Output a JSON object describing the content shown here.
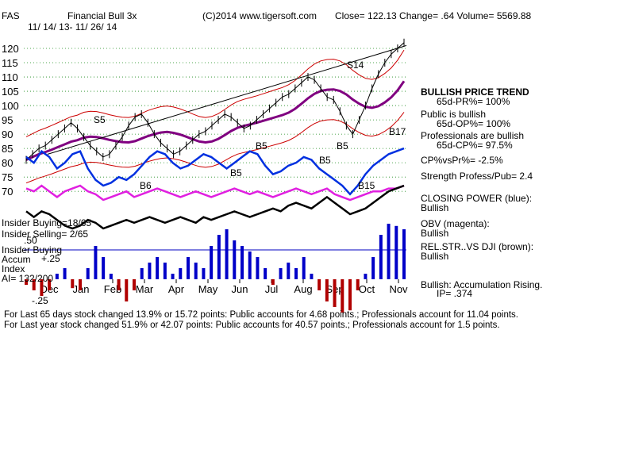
{
  "header": {
    "symbol": "FAS",
    "name": "Financial Bull 3x",
    "date_range": "11/ 14/ 13- 11/ 26/ 14",
    "copyright": "(C)2014 www.tigersoft.com",
    "stats": "Close=  122.13  Change= .64 Volume= 5569.88"
  },
  "chart_data": {
    "type": "line",
    "title": "Financial Bull 3x",
    "y_ticks": [
      120,
      115,
      110,
      105,
      100,
      95,
      90,
      85,
      80,
      75,
      70
    ],
    "ylim": [
      67,
      122.5
    ],
    "x_ticks": [
      "Dec",
      "Jan",
      "Feb",
      "Mar",
      "Apr",
      "May",
      "Jun",
      "Jul",
      "Aug",
      "Sep",
      "Oct",
      "Nov"
    ],
    "price_series": {
      "name": "Price",
      "values": [
        81,
        83,
        85,
        86,
        88,
        90,
        92,
        94,
        92,
        89,
        86,
        84,
        82,
        83,
        86,
        89,
        93,
        96,
        97,
        94,
        90,
        87,
        85,
        83,
        84,
        86,
        88,
        90,
        91,
        93,
        95,
        97,
        96,
        94,
        92,
        93,
        95,
        97,
        99,
        101,
        103,
        104,
        106,
        108,
        110,
        109,
        106,
        103,
        102,
        98,
        93,
        90,
        95,
        100,
        106,
        111,
        115,
        118,
        120,
        122
      ]
    },
    "signals": [
      "S5",
      "B6",
      "B5",
      "B5",
      "S14",
      "B5",
      "B17",
      "B15",
      "B5"
    ],
    "indicator_labels": [
      "Insider Buying=18/65",
      "Insider Selling= 2/65",
      "Insider Buying",
      "Accum",
      "Index",
      "AI= 132/200"
    ],
    "accum_ticks": [
      ".50",
      "+.25",
      "-.25"
    ],
    "closing_power": [
      82,
      80,
      84,
      82,
      78,
      80,
      83,
      84,
      78,
      74,
      72,
      73,
      75,
      74,
      76,
      79,
      82,
      84,
      83,
      80,
      78,
      79,
      81,
      83,
      82,
      80,
      78,
      80,
      82,
      84,
      83,
      79,
      76,
      77,
      79,
      80,
      82,
      81,
      78,
      76,
      74,
      72,
      69,
      72,
      76,
      79,
      81,
      83,
      84,
      85
    ],
    "obv": [
      71,
      70,
      72,
      70,
      68,
      70,
      71,
      72,
      70,
      69,
      67,
      68,
      69,
      70,
      68,
      69,
      70,
      71,
      70,
      69,
      68,
      69,
      70,
      69,
      68,
      69,
      70,
      71,
      70,
      69,
      70,
      69,
      68,
      69,
      70,
      71,
      70,
      69,
      70,
      71,
      69,
      68,
      67,
      68,
      69,
      70,
      70,
      71,
      71,
      72
    ],
    "rel_str": [
      63,
      61,
      63,
      62,
      60,
      58,
      57,
      58,
      60,
      59,
      57,
      58,
      59,
      60,
      59,
      60,
      61,
      60,
      59,
      60,
      61,
      60,
      59,
      61,
      60,
      61,
      62,
      63,
      62,
      61,
      62,
      63,
      64,
      63,
      65,
      66,
      65,
      64,
      66,
      68,
      66,
      64,
      62,
      63,
      64,
      66,
      68,
      70,
      71,
      72
    ],
    "accumulation": [
      -0.05,
      -0.1,
      -0.15,
      -0.1,
      0.05,
      0.1,
      -0.08,
      -0.1,
      0.1,
      0.3,
      0.2,
      0.05,
      -0.1,
      -0.2,
      -0.1,
      0.1,
      0.15,
      0.2,
      0.15,
      0.05,
      0.1,
      0.2,
      0.15,
      0.1,
      0.3,
      0.4,
      0.45,
      0.35,
      0.3,
      0.25,
      0.2,
      0.1,
      -0.05,
      0.1,
      0.15,
      0.1,
      0.2,
      0.05,
      -0.1,
      -0.2,
      -0.25,
      -0.3,
      -0.28,
      -0.1,
      0.05,
      0.2,
      0.4,
      0.5,
      0.48,
      0.45
    ]
  },
  "sidebar": {
    "price_trend_title": "BULLISH PRICE TREND",
    "price_trend_value": "65d-PR%= 100%",
    "public_title": "Public is bullish",
    "public_value": "65d-OP%= 100%",
    "pros_title": "Professionals are bullish",
    "pros_value": "65d-CP%= 97.5%",
    "cp_vs_pr": "CP%vsPr%= -2.5%",
    "strength": "Strength Profess/Pub= 2.4",
    "closing_power_title": "CLOSING POWER (blue):",
    "closing_power_value": "Bullish",
    "obv_title": "OBV (magenta):",
    "obv_value": "Bullish",
    "relstr_title": "REL.STR..VS DJI (brown):",
    "relstr_value": "Bullish",
    "accum_title": "Bullish: Accumulation Rising.",
    "accum_ip": "IP=  .374"
  },
  "footer": {
    "line1": "For Last 65 days stock changed  13.9% or  15.72 points:  Public accounts for  4.68 points.;  Professionals account for  11.04 points.",
    "line2": "For Last year stock changed  51.9% or  42.07 points:  Public accounts for  40.57 points.;  Professionals account for  1.5 points."
  }
}
